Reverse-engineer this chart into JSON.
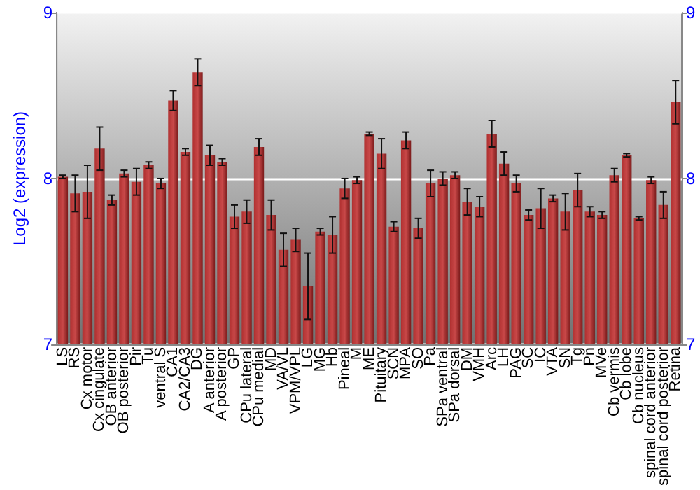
{
  "chart_data": {
    "type": "bar",
    "ylabel": "Log2 (expression)",
    "categories": [
      "LS",
      "RS",
      "Cx motor",
      "Cx cingulate",
      "OB anterior",
      "OB posterior",
      "Pir",
      "Tu",
      "ventral S",
      "CA1",
      "CA2/CA3",
      "DG",
      "A anterior",
      "A posterior",
      "GP",
      "CPu lateral",
      "CPu medial",
      "MD",
      "VA/VL",
      "VPM/VPL",
      "LG",
      "MG",
      "Hb",
      "Pineal",
      "M",
      "ME",
      "Pituitary",
      "SCN",
      "MPA",
      "SO",
      "Pa",
      "SPa ventral",
      "SPa dorsal",
      "DM",
      "VMH",
      "Arc",
      "LH",
      "PAG",
      "SC",
      "IC",
      "VTA",
      "SN",
      "Tg",
      "Pn",
      "MVe",
      "Cb vermis",
      "Cb lobe",
      "Cb nucleus",
      "spinal cord anterior",
      "spinal cord posterior",
      "Retina"
    ],
    "values": [
      8.01,
      7.91,
      7.92,
      8.18,
      7.87,
      8.03,
      7.98,
      8.08,
      7.97,
      8.47,
      8.16,
      8.64,
      8.14,
      8.1,
      7.77,
      7.8,
      8.19,
      7.78,
      7.57,
      7.63,
      7.35,
      7.68,
      7.66,
      7.94,
      7.99,
      8.27,
      8.15,
      7.71,
      8.23,
      7.7,
      7.97,
      8.0,
      8.02,
      7.86,
      7.83,
      8.27,
      8.09,
      7.97,
      7.78,
      7.82,
      7.88,
      7.8,
      7.93,
      7.8,
      7.78,
      8.02,
      8.14,
      7.76,
      7.99,
      7.84,
      8.46
    ],
    "errors": [
      0.01,
      0.11,
      0.16,
      0.13,
      0.03,
      0.02,
      0.08,
      0.02,
      0.03,
      0.06,
      0.02,
      0.08,
      0.06,
      0.02,
      0.07,
      0.07,
      0.05,
      0.09,
      0.1,
      0.07,
      0.2,
      0.02,
      0.11,
      0.06,
      0.02,
      0.01,
      0.09,
      0.03,
      0.05,
      0.06,
      0.08,
      0.04,
      0.02,
      0.08,
      0.06,
      0.08,
      0.07,
      0.05,
      0.03,
      0.12,
      0.02,
      0.11,
      0.1,
      0.03,
      0.02,
      0.04,
      0.01,
      0.01,
      0.02,
      0.08,
      0.13
    ],
    "color": "#b03030",
    "ylim": [
      7,
      9
    ],
    "yticks": [
      7,
      8,
      9
    ],
    "y2lim": [
      7,
      9
    ],
    "y2ticks": [
      7,
      8,
      9
    ],
    "grid": "y"
  }
}
